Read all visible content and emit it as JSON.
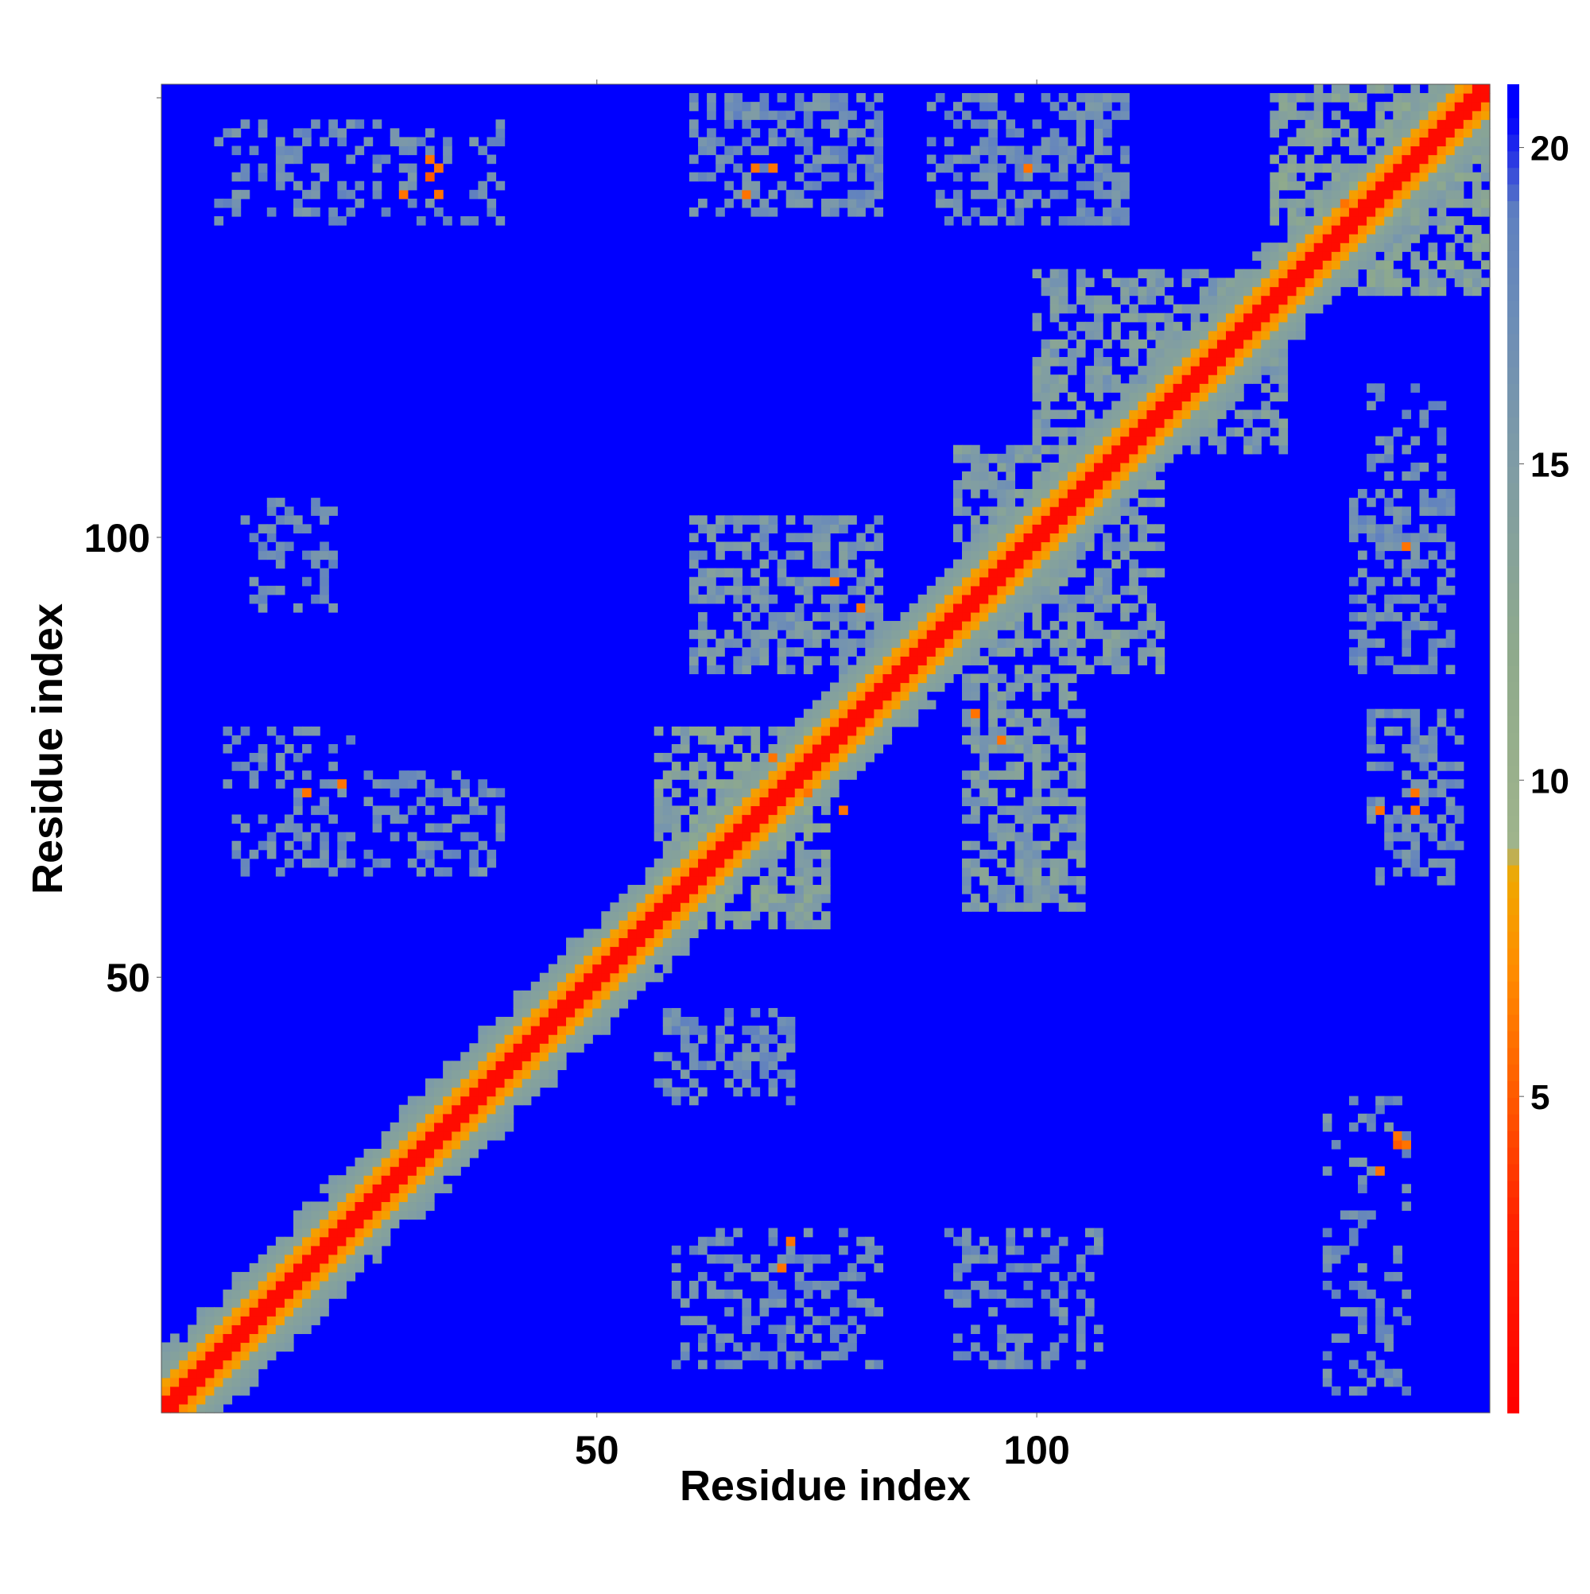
{
  "chart_data": {
    "type": "heatmap",
    "title": "",
    "xlabel": "Residue index",
    "ylabel": "Residue index",
    "n_residues": 151,
    "xlim": [
      1,
      151
    ],
    "ylim": [
      1,
      151
    ],
    "x_ticks": [
      50,
      100
    ],
    "y_ticks": [
      50,
      100
    ],
    "colorbar": {
      "ticks": [
        5,
        10,
        15,
        20
      ],
      "range": [
        0,
        21
      ],
      "position": "right",
      "stops": [
        {
          "value": 0,
          "color": "#ff0000"
        },
        {
          "value": 3,
          "color": "#ff2200"
        },
        {
          "value": 5,
          "color": "#ff5a00"
        },
        {
          "value": 7,
          "color": "#ff8c00"
        },
        {
          "value": 8.5,
          "color": "#f0a800"
        },
        {
          "value": 9,
          "color": "#9fb48c"
        },
        {
          "value": 12,
          "color": "#8faa8c"
        },
        {
          "value": 15,
          "color": "#7f9ca5"
        },
        {
          "value": 17,
          "color": "#6f8fb5"
        },
        {
          "value": 19,
          "color": "#5f80c0"
        },
        {
          "value": 20.5,
          "color": "#0000ff"
        }
      ]
    },
    "diagonal_band": {
      "core_width": 3,
      "orange_width": 5,
      "green_width": 9
    },
    "contact_patches": [
      {
        "x_range": [
          61,
          82
        ],
        "y_range": [
          85,
          102
        ],
        "value": 16,
        "density": 0.55
      },
      {
        "x_range": [
          91,
          114
        ],
        "y_range": [
          85,
          110
        ],
        "value": 15,
        "density": 0.55
      },
      {
        "x_range": [
          92,
          105
        ],
        "y_range": [
          58,
          84
        ],
        "value": 15,
        "density": 0.6
      },
      {
        "x_range": [
          57,
          76
        ],
        "y_range": [
          56,
          78
        ],
        "value": 14,
        "density": 0.6
      },
      {
        "x_range": [
          100,
          128
        ],
        "y_range": [
          110,
          130
        ],
        "value": 15,
        "density": 0.55
      },
      {
        "x_range": [
          127,
          151
        ],
        "y_range": [
          128,
          151
        ],
        "value": 14,
        "density": 0.6
      },
      {
        "x_range": [
          61,
          82
        ],
        "y_range": [
          137,
          150
        ],
        "value": 17,
        "density": 0.45
      },
      {
        "x_range": [
          88,
          110
        ],
        "y_range": [
          136,
          150
        ],
        "value": 17,
        "density": 0.45
      },
      {
        "x_range": [
          138,
          148
        ],
        "y_range": [
          61,
          80
        ],
        "value": 17,
        "density": 0.45
      },
      {
        "x_range": [
          136,
          147
        ],
        "y_range": [
          85,
          105
        ],
        "value": 17,
        "density": 0.45
      },
      {
        "x_range": [
          138,
          146
        ],
        "y_range": [
          107,
          117
        ],
        "value": 17,
        "density": 0.4
      },
      {
        "x_range": [
          10,
          20
        ],
        "y_range": [
          92,
          104
        ],
        "value": 17,
        "density": 0.35
      },
      {
        "x_range": [
          8,
          22
        ],
        "y_range": [
          62,
          79
        ],
        "value": 17,
        "density": 0.3
      },
      {
        "x_range": [
          24,
          39
        ],
        "y_range": [
          62,
          73
        ],
        "value": 17,
        "density": 0.4
      },
      {
        "x_range": [
          57,
          72
        ],
        "y_range": [
          36,
          46
        ],
        "value": 17,
        "density": 0.4
      },
      {
        "x_range": [
          59,
          82
        ],
        "y_range": [
          6,
          21
        ],
        "value": 17,
        "density": 0.35
      },
      {
        "x_range": [
          90,
          107
        ],
        "y_range": [
          6,
          21
        ],
        "value": 17,
        "density": 0.35
      },
      {
        "x_range": [
          133,
          142
        ],
        "y_range": [
          3,
          36
        ],
        "value": 17,
        "density": 0.25
      },
      {
        "x_range": [
          7,
          39
        ],
        "y_range": [
          136,
          147
        ],
        "value": 17,
        "density": 0.25
      }
    ],
    "hot_contacts": [
      {
        "x": 31,
        "y": 141,
        "value": 5
      },
      {
        "x": 32,
        "y": 142,
        "value": 6
      },
      {
        "x": 28,
        "y": 139,
        "value": 6
      },
      {
        "x": 32,
        "y": 139,
        "value": 6
      },
      {
        "x": 31,
        "y": 143,
        "value": 6
      },
      {
        "x": 68,
        "y": 142,
        "value": 6
      },
      {
        "x": 70,
        "y": 142,
        "value": 6
      },
      {
        "x": 67,
        "y": 139,
        "value": 6
      },
      {
        "x": 99,
        "y": 142,
        "value": 6
      },
      {
        "x": 77,
        "y": 95,
        "value": 6
      },
      {
        "x": 80,
        "y": 92,
        "value": 6
      },
      {
        "x": 74,
        "y": 71,
        "value": 6
      },
      {
        "x": 78,
        "y": 69,
        "value": 6
      },
      {
        "x": 70,
        "y": 75,
        "value": 6
      },
      {
        "x": 93,
        "y": 80,
        "value": 6
      },
      {
        "x": 96,
        "y": 77,
        "value": 6
      },
      {
        "x": 17,
        "y": 71,
        "value": 6
      },
      {
        "x": 21,
        "y": 72,
        "value": 6
      },
      {
        "x": 141,
        "y": 31,
        "value": 5
      },
      {
        "x": 142,
        "y": 31,
        "value": 6
      },
      {
        "x": 139,
        "y": 28,
        "value": 6
      },
      {
        "x": 141,
        "y": 32,
        "value": 6
      },
      {
        "x": 72,
        "y": 20,
        "value": 6
      },
      {
        "x": 71,
        "y": 17,
        "value": 6
      },
      {
        "x": 139,
        "y": 69,
        "value": 6
      },
      {
        "x": 143,
        "y": 69,
        "value": 6
      },
      {
        "x": 143,
        "y": 71,
        "value": 6
      },
      {
        "x": 142,
        "y": 99,
        "value": 6
      },
      {
        "x": 135,
        "y": 138,
        "value": 6
      }
    ]
  }
}
